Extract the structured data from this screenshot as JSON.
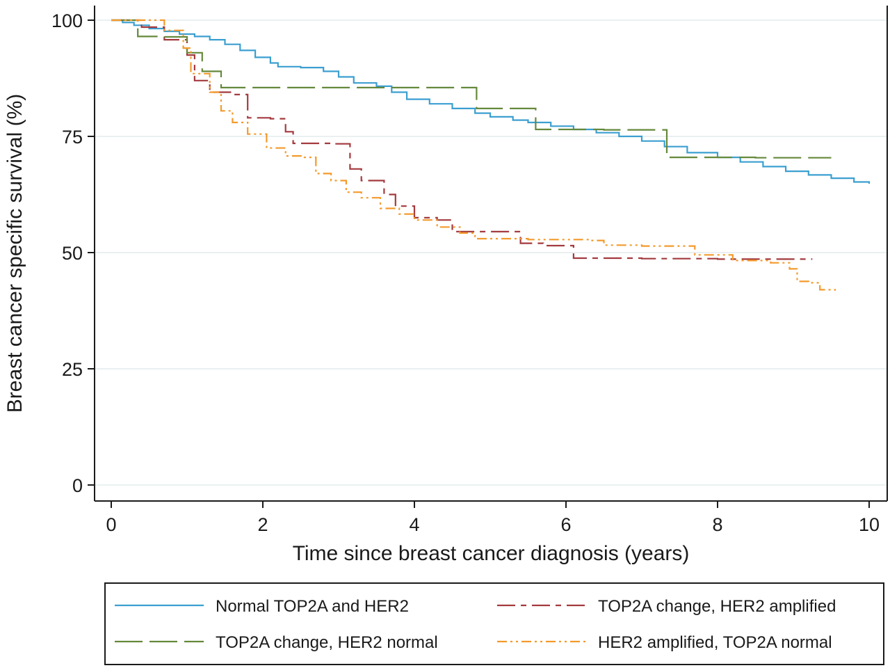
{
  "chart_data": {
    "type": "line",
    "step": true,
    "xlabel": "Time since breast cancer diagnosis (years)",
    "ylabel": "Breast cancer specific survival (%)",
    "xlim": [
      0,
      10
    ],
    "ylim": [
      0,
      100
    ],
    "xticks": [
      0,
      2,
      4,
      6,
      8,
      10
    ],
    "yticks": [
      0,
      25,
      50,
      75,
      100
    ],
    "grid": "horizontal",
    "legend_position": "bottom",
    "series": [
      {
        "name": "Normal TOP2A and HER2",
        "color": "#3b9fd0",
        "dash": "solid",
        "points": [
          [
            0,
            100
          ],
          [
            0.15,
            99.5
          ],
          [
            0.3,
            98.9
          ],
          [
            0.5,
            98.2
          ],
          [
            0.7,
            97.6
          ],
          [
            0.9,
            97
          ],
          [
            1.1,
            96.5
          ],
          [
            1.3,
            95.8
          ],
          [
            1.5,
            94.8
          ],
          [
            1.7,
            93.5
          ],
          [
            1.9,
            92
          ],
          [
            2.1,
            90.8
          ],
          [
            2.2,
            90
          ],
          [
            2.5,
            89.8
          ],
          [
            2.8,
            89
          ],
          [
            3.0,
            87.8
          ],
          [
            3.2,
            86.5
          ],
          [
            3.5,
            85.8
          ],
          [
            3.7,
            84.5
          ],
          [
            3.9,
            83
          ],
          [
            4.2,
            82
          ],
          [
            4.5,
            81
          ],
          [
            4.8,
            80
          ],
          [
            5.0,
            79.2
          ],
          [
            5.3,
            78.5
          ],
          [
            5.5,
            78
          ],
          [
            5.8,
            77.2
          ],
          [
            6.1,
            76.5
          ],
          [
            6.4,
            75.8
          ],
          [
            6.7,
            75
          ],
          [
            7.0,
            74
          ],
          [
            7.3,
            72.8
          ],
          [
            7.6,
            71.5
          ],
          [
            8.0,
            70.5
          ],
          [
            8.3,
            69.5
          ],
          [
            8.6,
            68.5
          ],
          [
            8.9,
            67.5
          ],
          [
            9.2,
            66.7
          ],
          [
            9.5,
            66
          ],
          [
            9.8,
            65.2
          ],
          [
            10.0,
            64.8
          ]
        ]
      },
      {
        "name": "TOP2A change, HER2 amplified",
        "color": "#a33a3e",
        "dash": "long-short",
        "points": [
          [
            0,
            100
          ],
          [
            0.4,
            98.5
          ],
          [
            0.7,
            95.8
          ],
          [
            1.0,
            92.5
          ],
          [
            1.1,
            87
          ],
          [
            1.3,
            84.5
          ],
          [
            1.6,
            84
          ],
          [
            1.8,
            79
          ],
          [
            2.1,
            78.8
          ],
          [
            2.3,
            76
          ],
          [
            2.4,
            73.5
          ],
          [
            2.9,
            73.4
          ],
          [
            3.15,
            68
          ],
          [
            3.3,
            65.5
          ],
          [
            3.6,
            62.5
          ],
          [
            3.75,
            60
          ],
          [
            4.0,
            57.5
          ],
          [
            4.3,
            57
          ],
          [
            4.5,
            54.5
          ],
          [
            4.9,
            54.5
          ],
          [
            5.2,
            54.5
          ],
          [
            5.4,
            52
          ],
          [
            5.7,
            51.5
          ],
          [
            6.1,
            48.8
          ],
          [
            7.0,
            48.7
          ],
          [
            8.0,
            48.6
          ],
          [
            9.25,
            48.6
          ]
        ]
      },
      {
        "name": "TOP2A change, HER2 normal",
        "color": "#64883a",
        "dash": "long",
        "points": [
          [
            0,
            100
          ],
          [
            0.35,
            96.5
          ],
          [
            0.7,
            96.4
          ],
          [
            1.0,
            93
          ],
          [
            1.2,
            89
          ],
          [
            1.45,
            85.5
          ],
          [
            2.5,
            85.5
          ],
          [
            3.5,
            85.5
          ],
          [
            4.82,
            81
          ],
          [
            5.6,
            76.5
          ],
          [
            6.5,
            76.4
          ],
          [
            7.33,
            70.5
          ],
          [
            8.5,
            70.4
          ],
          [
            9.5,
            70.4
          ]
        ]
      },
      {
        "name": "HER2 amplified, TOP2A normal",
        "color": "#f39a2c",
        "dash": "dot-dot-dash",
        "points": [
          [
            0,
            100
          ],
          [
            0.7,
            97.8
          ],
          [
            0.95,
            94
          ],
          [
            1.05,
            88.5
          ],
          [
            1.3,
            84.5
          ],
          [
            1.45,
            80.5
          ],
          [
            1.6,
            78
          ],
          [
            1.8,
            75.5
          ],
          [
            2.05,
            72.5
          ],
          [
            2.3,
            70.8
          ],
          [
            2.55,
            70.5
          ],
          [
            2.7,
            67
          ],
          [
            2.9,
            65.5
          ],
          [
            3.1,
            63
          ],
          [
            3.3,
            61.8
          ],
          [
            3.55,
            59.5
          ],
          [
            3.8,
            58.3
          ],
          [
            4.0,
            57
          ],
          [
            4.3,
            55.5
          ],
          [
            4.6,
            54.2
          ],
          [
            4.8,
            53
          ],
          [
            5.5,
            52.8
          ],
          [
            6.3,
            52.6
          ],
          [
            6.5,
            51.6
          ],
          [
            7.0,
            51.4
          ],
          [
            7.7,
            49.5
          ],
          [
            8.2,
            48.3
          ],
          [
            8.7,
            47.8
          ],
          [
            8.95,
            46.5
          ],
          [
            9.05,
            43.8
          ],
          [
            9.2,
            43.5
          ],
          [
            9.35,
            42
          ],
          [
            9.55,
            41.8
          ]
        ]
      }
    ]
  }
}
